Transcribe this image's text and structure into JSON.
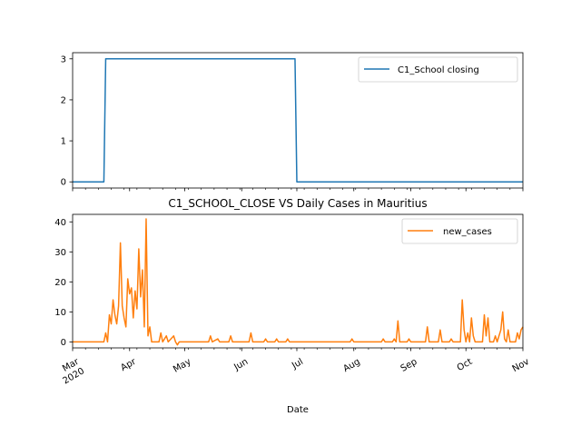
{
  "chart_data": [
    {
      "type": "line",
      "title": "",
      "xlabel": "",
      "ylabel": "",
      "legend_position": "top-right",
      "grid": false,
      "x_range": [
        "2020-03-01",
        "2020-11-01"
      ],
      "ylim": [
        -0.15,
        3.15
      ],
      "yticks": [
        "0",
        "1",
        "2",
        "3"
      ],
      "series": [
        {
          "name": "C1_School closing",
          "color": "#1f77b4",
          "points": [
            [
              "2020-03-01",
              0
            ],
            [
              "2020-03-18",
              0
            ],
            [
              "2020-03-19",
              3
            ],
            [
              "2020-06-30",
              3
            ],
            [
              "2020-07-01",
              0
            ],
            [
              "2020-11-01",
              0
            ]
          ]
        }
      ]
    },
    {
      "type": "line",
      "title": "C1_SCHOOL_CLOSE VS Daily Cases in Mauritius",
      "xlabel": "Date",
      "ylabel": "",
      "legend_position": "top-right",
      "grid": false,
      "x_range": [
        "2020-03-01",
        "2020-11-01"
      ],
      "ylim": [
        -2,
        42.5
      ],
      "yticks": [
        "0",
        "10",
        "20",
        "30",
        "40"
      ],
      "xtick_labels": [
        {
          "date": "2020-03-01",
          "lines": [
            "Mar",
            "2020"
          ]
        },
        {
          "date": "2020-04-01",
          "lines": [
            "Apr"
          ]
        },
        {
          "date": "2020-05-01",
          "lines": [
            "May"
          ]
        },
        {
          "date": "2020-06-01",
          "lines": [
            "Jun"
          ]
        },
        {
          "date": "2020-07-01",
          "lines": [
            "Jul"
          ]
        },
        {
          "date": "2020-08-01",
          "lines": [
            "Aug"
          ]
        },
        {
          "date": "2020-09-01",
          "lines": [
            "Sep"
          ]
        },
        {
          "date": "2020-10-01",
          "lines": [
            "Oct"
          ]
        },
        {
          "date": "2020-11-01",
          "lines": [
            "Nov"
          ]
        }
      ],
      "series": [
        {
          "name": "new_cases",
          "color": "#ff7f0e",
          "points": [
            [
              "2020-03-01",
              0
            ],
            [
              "2020-03-18",
              0
            ],
            [
              "2020-03-19",
              3
            ],
            [
              "2020-03-20",
              0
            ],
            [
              "2020-03-21",
              9
            ],
            [
              "2020-03-22",
              6
            ],
            [
              "2020-03-23",
              14
            ],
            [
              "2020-03-24",
              9
            ],
            [
              "2020-03-25",
              6
            ],
            [
              "2020-03-26",
              12
            ],
            [
              "2020-03-27",
              33
            ],
            [
              "2020-03-28",
              12
            ],
            [
              "2020-03-29",
              8
            ],
            [
              "2020-03-30",
              5
            ],
            [
              "2020-03-31",
              21
            ],
            [
              "2020-04-01",
              16
            ],
            [
              "2020-04-02",
              18
            ],
            [
              "2020-04-03",
              8
            ],
            [
              "2020-04-04",
              17
            ],
            [
              "2020-04-05",
              11
            ],
            [
              "2020-04-06",
              31
            ],
            [
              "2020-04-07",
              15
            ],
            [
              "2020-04-08",
              24
            ],
            [
              "2020-04-09",
              5
            ],
            [
              "2020-04-10",
              41
            ],
            [
              "2020-04-11",
              2
            ],
            [
              "2020-04-12",
              5
            ],
            [
              "2020-04-13",
              0
            ],
            [
              "2020-04-17",
              0
            ],
            [
              "2020-04-18",
              3
            ],
            [
              "2020-04-19",
              0
            ],
            [
              "2020-04-21",
              2
            ],
            [
              "2020-04-22",
              0
            ],
            [
              "2020-04-25",
              2
            ],
            [
              "2020-04-26",
              0
            ],
            [
              "2020-04-27",
              -1
            ],
            [
              "2020-04-28",
              0
            ],
            [
              "2020-05-14",
              0
            ],
            [
              "2020-05-15",
              2
            ],
            [
              "2020-05-16",
              0
            ],
            [
              "2020-05-19",
              1
            ],
            [
              "2020-05-20",
              0
            ],
            [
              "2020-05-25",
              0
            ],
            [
              "2020-05-26",
              2
            ],
            [
              "2020-05-27",
              0
            ],
            [
              "2020-06-05",
              0
            ],
            [
              "2020-06-06",
              3
            ],
            [
              "2020-06-07",
              0
            ],
            [
              "2020-06-13",
              0
            ],
            [
              "2020-06-14",
              1
            ],
            [
              "2020-06-15",
              0
            ],
            [
              "2020-06-19",
              0
            ],
            [
              "2020-06-20",
              1
            ],
            [
              "2020-06-21",
              0
            ],
            [
              "2020-06-25",
              0
            ],
            [
              "2020-06-26",
              1
            ],
            [
              "2020-06-27",
              0
            ],
            [
              "2020-07-30",
              0
            ],
            [
              "2020-07-31",
              1
            ],
            [
              "2020-08-01",
              0
            ],
            [
              "2020-08-16",
              0
            ],
            [
              "2020-08-17",
              1
            ],
            [
              "2020-08-18",
              0
            ],
            [
              "2020-08-22",
              0
            ],
            [
              "2020-08-23",
              1
            ],
            [
              "2020-08-24",
              0
            ],
            [
              "2020-08-25",
              7
            ],
            [
              "2020-08-26",
              0
            ],
            [
              "2020-08-30",
              0
            ],
            [
              "2020-08-31",
              1
            ],
            [
              "2020-09-01",
              0
            ],
            [
              "2020-09-09",
              0
            ],
            [
              "2020-09-10",
              5
            ],
            [
              "2020-09-11",
              0
            ],
            [
              "2020-09-16",
              0
            ],
            [
              "2020-09-17",
              4
            ],
            [
              "2020-09-18",
              0
            ],
            [
              "2020-09-22",
              0
            ],
            [
              "2020-09-23",
              1
            ],
            [
              "2020-09-24",
              0
            ],
            [
              "2020-09-28",
              0
            ],
            [
              "2020-09-29",
              14
            ],
            [
              "2020-09-30",
              4
            ],
            [
              "2020-10-01",
              0
            ],
            [
              "2020-10-02",
              3
            ],
            [
              "2020-10-03",
              0
            ],
            [
              "2020-10-04",
              8
            ],
            [
              "2020-10-05",
              2
            ],
            [
              "2020-10-06",
              0
            ],
            [
              "2020-10-10",
              0
            ],
            [
              "2020-10-11",
              9
            ],
            [
              "2020-10-12",
              2
            ],
            [
              "2020-10-13",
              8
            ],
            [
              "2020-10-14",
              0
            ],
            [
              "2020-10-16",
              0
            ],
            [
              "2020-10-17",
              2
            ],
            [
              "2020-10-18",
              0
            ],
            [
              "2020-10-20",
              4
            ],
            [
              "2020-10-21",
              10
            ],
            [
              "2020-10-22",
              1
            ],
            [
              "2020-10-23",
              0
            ],
            [
              "2020-10-24",
              4
            ],
            [
              "2020-10-25",
              0
            ],
            [
              "2020-10-28",
              0
            ],
            [
              "2020-10-29",
              3
            ],
            [
              "2020-10-30",
              1
            ],
            [
              "2020-10-31",
              4
            ],
            [
              "2020-11-01",
              5
            ]
          ]
        }
      ]
    }
  ]
}
